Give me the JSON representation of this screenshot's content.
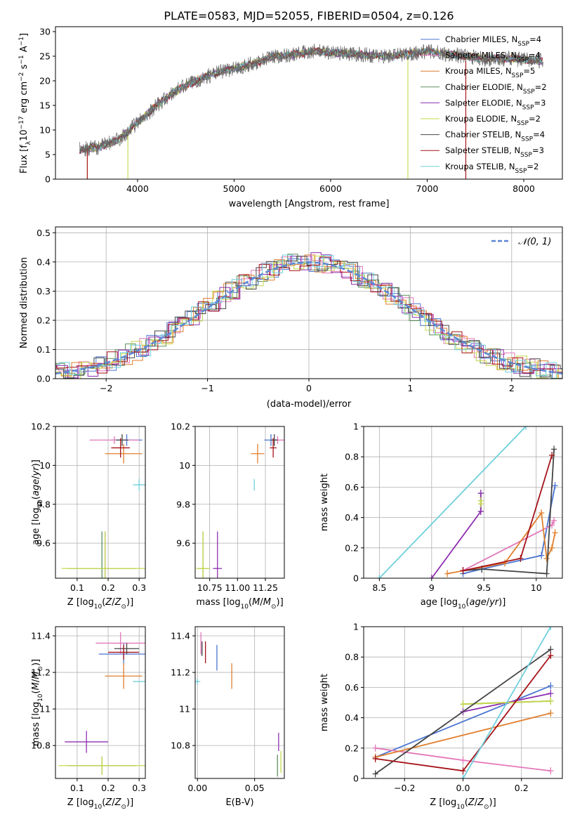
{
  "colors": {
    "Chabrier MILES": "#4a74d1",
    "Salpeter MILES": "#e377b9",
    "Kroupa MILES": "#e07f2d",
    "Chabrier ELODIE": "#5c8f5c",
    "Salpeter ELODIE": "#8e2fb0",
    "Kroupa ELODIE": "#c6d84a",
    "Chabrier STELIB": "#444444",
    "Salpeter STELIB": "#a51218",
    "Kroupa STELIB": "#6fd0dc"
  },
  "chart_data": [
    {
      "id": "spectrum",
      "type": "line",
      "title": "PLATE=0583, MJD=52055, FIBERID=0504, z=0.126",
      "xlabel": "wavelength [Angstrom, rest frame]",
      "ylabel": "Flux [fλ10⁻¹⁷ erg cm⁻² s⁻¹ A⁻¹]",
      "xlim": [
        3150,
        8400
      ],
      "ylim": [
        0,
        31
      ],
      "xticks": [
        4000,
        5000,
        6000,
        7000,
        8000
      ],
      "yticks": [
        0,
        5,
        10,
        15,
        20,
        25,
        30
      ],
      "x_range_observed": [
        3400,
        8200
      ],
      "continuum": [
        [
          3400,
          6
        ],
        [
          3600,
          6.5
        ],
        [
          3800,
          8
        ],
        [
          4000,
          11.5
        ],
        [
          4200,
          15
        ],
        [
          4400,
          18
        ],
        [
          4600,
          20
        ],
        [
          4800,
          21.5
        ],
        [
          5000,
          22.5
        ],
        [
          5200,
          23.5
        ],
        [
          5400,
          25
        ],
        [
          5600,
          25.3
        ],
        [
          5800,
          26
        ],
        [
          6000,
          25.8
        ],
        [
          6200,
          25.5
        ],
        [
          6400,
          25.2
        ],
        [
          6600,
          25
        ],
        [
          6800,
          25.5
        ],
        [
          7000,
          26
        ],
        [
          7200,
          25.5
        ],
        [
          7400,
          25
        ],
        [
          7600,
          24.5
        ],
        [
          7800,
          24.5
        ],
        [
          8000,
          24.3
        ],
        [
          8200,
          24
        ]
      ],
      "series": [
        {
          "name": "Chabrier MILES, N_SSP=4",
          "legend": "Chabrier MILES, N",
          "sub": "SSP",
          "suffix": "=4"
        },
        {
          "name": "Salpeter MILES, N_SSP=4",
          "legend": "Salpeter MILES, N",
          "sub": "SSP",
          "suffix": "=4"
        },
        {
          "name": "Kroupa MILES, N_SSP=5",
          "legend": "Kroupa MILES, N",
          "sub": "SSP",
          "suffix": "=5"
        },
        {
          "name": "Chabrier ELODIE, N_SSP=2",
          "legend": "Chabrier ELODIE, N",
          "sub": "SSP",
          "suffix": "=2"
        },
        {
          "name": "Salpeter ELODIE, N_SSP=3",
          "legend": "Salpeter ELODIE, N",
          "sub": "SSP",
          "suffix": "=3"
        },
        {
          "name": "Kroupa ELODIE, N_SSP=2",
          "legend": "Kroupa ELODIE, N",
          "sub": "SSP",
          "suffix": "=2"
        },
        {
          "name": "Chabrier STELIB, N_SSP=4",
          "legend": "Chabrier STELIB, N",
          "sub": "SSP",
          "suffix": "=4"
        },
        {
          "name": "Salpeter STELIB, N_SSP=3",
          "legend": "Salpeter STELIB, N",
          "sub": "SSP",
          "suffix": "=3"
        },
        {
          "name": "Kroupa STELIB, N_SSP=2",
          "legend": "Kroupa STELIB, N",
          "sub": "SSP",
          "suffix": "=2"
        }
      ],
      "legend_placement": "upper right"
    },
    {
      "id": "residuals",
      "type": "step",
      "xlabel": "(data-model)/error",
      "ylabel": "Normed distribution",
      "xlim": [
        -2.5,
        2.5
      ],
      "ylim": [
        0,
        0.52
      ],
      "xticks": [
        -2,
        -1,
        0,
        1,
        2
      ],
      "xticklabels": [
        "−2",
        "−1",
        "0",
        "1",
        "2"
      ],
      "yticks": [
        0.0,
        0.1,
        0.2,
        0.3,
        0.4,
        0.5
      ],
      "yticklabels": [
        "0.0",
        "0.1",
        "0.2",
        "0.3",
        "0.4",
        "0.5"
      ],
      "bin_width": 0.1,
      "reference": {
        "name": "𝒩(0,1)",
        "label": "𝒩(0, 1)",
        "style": "dashed",
        "color": "#5b86d4"
      },
      "grid": true,
      "legend_placement": "upper right"
    },
    {
      "id": "age_vs_Z",
      "type": "errorbar",
      "xlabel": "Z [log₁₀(Z/Z⊙)]",
      "ylabel": "age  [log₁₀(age/yr)]",
      "xlim": [
        0.03,
        0.32
      ],
      "ylim": [
        9.42,
        10.2
      ],
      "xticks": [
        0.1,
        0.2,
        0.3
      ],
      "yticks": [
        9.6,
        9.8,
        10.0,
        10.2
      ],
      "points": [
        {
          "model": "Chabrier MILES",
          "x": 0.26,
          "y": 10.13,
          "xerr": 0.05,
          "yerr": 0.03
        },
        {
          "model": "Salpeter MILES",
          "x": 0.22,
          "y": 10.13,
          "xerr": 0.08,
          "yerr": 0.02
        },
        {
          "model": "Kroupa MILES",
          "x": 0.25,
          "y": 10.06,
          "xerr": 0.06,
          "yerr": 0.05
        },
        {
          "model": "Chabrier ELODIE",
          "x": 0.18,
          "y": 9.47,
          "xerr": 0.11,
          "yerr": 0.19
        },
        {
          "model": "Salpeter ELODIE",
          "x": 0.19,
          "y": 9.47,
          "xerr": 0.0,
          "yerr": 0.19
        },
        {
          "model": "Kroupa ELODIE",
          "x": 0.19,
          "y": 9.47,
          "xerr": 0.14,
          "yerr": 0.19
        },
        {
          "model": "Chabrier STELIB",
          "x": 0.245,
          "y": 10.13,
          "xerr": 0.02,
          "yerr": 0.03
        },
        {
          "model": "Salpeter STELIB",
          "x": 0.24,
          "y": 10.09,
          "xerr": 0.03,
          "yerr": 0.05
        },
        {
          "model": "Kroupa STELIB",
          "x": 0.3,
          "y": 9.9,
          "xerr": 0.02,
          "yerr": 0.03
        }
      ],
      "grid": true
    },
    {
      "id": "age_vs_mass",
      "type": "errorbar",
      "xlabel": "mass [log₁₀(M/M⊙)]",
      "xlim": [
        10.62,
        11.42
      ],
      "ylim": [
        9.42,
        10.2
      ],
      "xticks": [
        10.75,
        11.0,
        11.25
      ],
      "xticklabels": [
        "10.75",
        "11.00",
        "11.25"
      ],
      "yticks": [
        9.6,
        9.8,
        10.0,
        10.2
      ],
      "points": [
        {
          "model": "Chabrier MILES",
          "x": 11.3,
          "y": 10.13,
          "xerr": 0.06,
          "yerr": 0.03
        },
        {
          "model": "Salpeter MILES",
          "x": 11.36,
          "y": 10.13,
          "xerr": 0.06,
          "yerr": 0.02
        },
        {
          "model": "Kroupa MILES",
          "x": 11.18,
          "y": 10.06,
          "xerr": 0.06,
          "yerr": 0.05
        },
        {
          "model": "Chabrier ELODIE",
          "x": 10.69,
          "y": 9.47,
          "xerr": 0.05,
          "yerr": 0.19
        },
        {
          "model": "Salpeter ELODIE",
          "x": 10.82,
          "y": 9.47,
          "xerr": 0.04,
          "yerr": 0.19
        },
        {
          "model": "Kroupa ELODIE",
          "x": 10.69,
          "y": 9.47,
          "xerr": 0.06,
          "yerr": 0.19
        },
        {
          "model": "Chabrier STELIB",
          "x": 11.33,
          "y": 10.13,
          "xerr": 0.03,
          "yerr": 0.03
        },
        {
          "model": "Salpeter STELIB",
          "x": 11.32,
          "y": 10.09,
          "xerr": 0.03,
          "yerr": 0.05
        },
        {
          "model": "Kroupa STELIB",
          "x": 11.15,
          "y": 9.9,
          "xerr": 0.0,
          "yerr": 0.03
        }
      ],
      "grid": true
    },
    {
      "id": "massweight_vs_age",
      "type": "line",
      "xlabel": "age  [log₁₀(age/yr)]",
      "ylabel": "mass weight",
      "xlim": [
        8.35,
        10.25
      ],
      "ylim": [
        0,
        1.0
      ],
      "xticks": [
        8.5,
        9.0,
        9.5,
        10.0
      ],
      "yticks": [
        0.0,
        0.2,
        0.4,
        0.6,
        0.8,
        1.0
      ],
      "series": [
        {
          "model": "Chabrier MILES",
          "x": [
            9.3,
            9.48,
            10.05,
            10.18
          ],
          "y": [
            0.03,
            0.06,
            0.15,
            0.61
          ]
        },
        {
          "model": "Salpeter MILES",
          "x": [
            9.3,
            10.15,
            10.17
          ],
          "y": [
            0.05,
            0.35,
            0.38
          ]
        },
        {
          "model": "Kroupa MILES",
          "x": [
            9.15,
            9.7,
            10.05,
            10.1,
            10.15,
            10.18
          ],
          "y": [
            0.03,
            0.1,
            0.43,
            0.13,
            0.2,
            0.3
          ]
        },
        {
          "model": "Chabrier ELODIE",
          "x": [
            9.47,
            9.47
          ],
          "y": [
            0.44,
            0.56
          ]
        },
        {
          "model": "Salpeter ELODIE",
          "x": [
            9.0,
            9.47,
            9.47
          ],
          "y": [
            0.0,
            0.44,
            0.56
          ]
        },
        {
          "model": "Kroupa ELODIE",
          "x": [
            9.47,
            9.47
          ],
          "y": [
            0.49,
            0.51
          ]
        },
        {
          "model": "Chabrier STELIB",
          "x": [
            9.3,
            9.48,
            10.1,
            10.17
          ],
          "y": [
            0.05,
            0.06,
            0.03,
            0.85
          ]
        },
        {
          "model": "Salpeter STELIB",
          "x": [
            9.3,
            9.85,
            10.15
          ],
          "y": [
            0.05,
            0.13,
            0.81
          ]
        },
        {
          "model": "Kroupa STELIB",
          "x": [
            8.5,
            9.9
          ],
          "y": [
            0.0,
            1.0
          ]
        }
      ],
      "grid": true
    },
    {
      "id": "mass_vs_Z",
      "type": "errorbar",
      "xlabel": "Z [log₁₀(Z/Z⊙)]",
      "ylabel": "mass [log₁₀(M/M⊙)]",
      "xlim": [
        0.03,
        0.32
      ],
      "ylim": [
        10.62,
        11.45
      ],
      "xticks": [
        0.1,
        0.2,
        0.3
      ],
      "yticks": [
        10.8,
        11.0,
        11.2,
        11.4
      ],
      "points": [
        {
          "model": "Chabrier MILES",
          "x": 0.25,
          "y": 11.3,
          "xerr": 0.08,
          "yerr": 0.06
        },
        {
          "model": "Salpeter MILES",
          "x": 0.24,
          "y": 11.36,
          "xerr": 0.08,
          "yerr": 0.06
        },
        {
          "model": "Kroupa MILES",
          "x": 0.25,
          "y": 11.18,
          "xerr": 0.06,
          "yerr": 0.07
        },
        {
          "model": "Chabrier ELODIE",
          "x": 0.18,
          "y": 10.69,
          "xerr": 0.11,
          "yerr": 0.05
        },
        {
          "model": "Salpeter ELODIE",
          "x": 0.13,
          "y": 10.82,
          "xerr": 0.07,
          "yerr": 0.06
        },
        {
          "model": "Kroupa ELODIE",
          "x": 0.18,
          "y": 10.69,
          "xerr": 0.14,
          "yerr": 0.05
        },
        {
          "model": "Chabrier STELIB",
          "x": 0.26,
          "y": 11.33,
          "xerr": 0.04,
          "yerr": 0.03
        },
        {
          "model": "Salpeter STELIB",
          "x": 0.25,
          "y": 11.31,
          "xerr": 0.05,
          "yerr": 0.04
        },
        {
          "model": "Kroupa STELIB",
          "x": 0.3,
          "y": 11.15,
          "xerr": 0.02,
          "yerr": 0.0
        }
      ],
      "grid": true
    },
    {
      "id": "mass_vs_EBV",
      "type": "errorbar",
      "xlabel": "E(B-V)",
      "xlim": [
        -0.002,
        0.076
      ],
      "ylim": [
        10.62,
        11.45
      ],
      "xticks": [
        0.0,
        0.05
      ],
      "xticklabels": [
        "0.00",
        "0.05"
      ],
      "yticks": [
        10.8,
        11.0,
        11.2,
        11.4
      ],
      "points": [
        {
          "model": "Chabrier MILES",
          "x": 0.017,
          "y": 11.28,
          "yerr": 0.07
        },
        {
          "model": "Salpeter MILES",
          "x": 0.003,
          "y": 11.36,
          "yerr": 0.06
        },
        {
          "model": "Kroupa MILES",
          "x": 0.03,
          "y": 11.18,
          "yerr": 0.07
        },
        {
          "model": "Chabrier ELODIE",
          "x": 0.07,
          "y": 10.69,
          "yerr": 0.06
        },
        {
          "model": "Salpeter ELODIE",
          "x": 0.071,
          "y": 10.82,
          "yerr": 0.05
        },
        {
          "model": "Kroupa ELODIE",
          "x": 0.073,
          "y": 10.71,
          "yerr": 0.06
        },
        {
          "model": "Chabrier STELIB",
          "x": 0.004,
          "y": 11.33,
          "yerr": 0.04
        },
        {
          "model": "Salpeter STELIB",
          "x": 0.007,
          "y": 11.31,
          "yerr": 0.06
        },
        {
          "model": "Kroupa STELIB",
          "x": 0.0,
          "y": 11.15,
          "yerr": 0.0
        }
      ],
      "grid": true
    },
    {
      "id": "massweight_vs_Z",
      "type": "line",
      "xlabel": "Z [log₁₀(Z/Z⊙)]",
      "ylabel": "mass weight",
      "xlim": [
        -0.34,
        0.34
      ],
      "ylim": [
        0,
        1.0
      ],
      "xticks": [
        -0.2,
        0.0,
        0.2
      ],
      "xticklabels": [
        "−0.2",
        "0.0",
        "0.2"
      ],
      "yticks": [
        0.0,
        0.2,
        0.4,
        0.6,
        0.8,
        1.0
      ],
      "series": [
        {
          "model": "Chabrier MILES",
          "x": [
            -0.3,
            0.3
          ],
          "y": [
            0.14,
            0.61
          ]
        },
        {
          "model": "Salpeter MILES",
          "x": [
            -0.3,
            0.0,
            0.3
          ],
          "y": [
            0.2,
            0.12,
            0.05
          ]
        },
        {
          "model": "Kroupa MILES",
          "x": [
            -0.3,
            0.3
          ],
          "y": [
            0.14,
            0.43
          ]
        },
        {
          "model": "Chabrier ELODIE",
          "x": [
            0.0,
            0.3
          ],
          "y": [
            0.49,
            0.51
          ]
        },
        {
          "model": "Salpeter ELODIE",
          "x": [
            0.0,
            0.3
          ],
          "y": [
            0.44,
            0.56
          ]
        },
        {
          "model": "Kroupa ELODIE",
          "x": [
            0.0,
            0.3
          ],
          "y": [
            0.49,
            0.51
          ]
        },
        {
          "model": "Chabrier STELIB",
          "x": [
            -0.3,
            0.3
          ],
          "y": [
            0.03,
            0.85
          ]
        },
        {
          "model": "Salpeter STELIB",
          "x": [
            -0.3,
            0.0,
            0.3
          ],
          "y": [
            0.13,
            0.05,
            0.81
          ]
        },
        {
          "model": "Kroupa STELIB",
          "x": [
            0.0,
            0.3
          ],
          "y": [
            0.0,
            1.0
          ]
        }
      ],
      "grid": true
    }
  ]
}
